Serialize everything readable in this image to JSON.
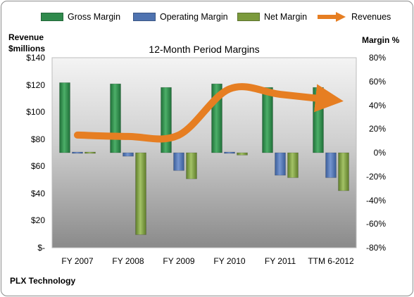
{
  "chart_data": {
    "type": "bar",
    "title": "12-Month Period Margins",
    "categories": [
      "FY 2007",
      "FY 2008",
      "FY 2009",
      "FY 2010",
      "FY 2011",
      "TTM 6-2012"
    ],
    "series": [
      {
        "name": "Gross Margin",
        "axis": "right",
        "color": "#2f8a4c",
        "values": [
          59,
          58,
          55,
          58,
          55,
          55
        ]
      },
      {
        "name": "Operating Margin",
        "axis": "right",
        "color": "#4f73b0",
        "values": [
          -1,
          -3,
          -15,
          0,
          -19,
          -21
        ]
      },
      {
        "name": "Net Margin",
        "axis": "right",
        "color": "#7b9a3c",
        "values": [
          1,
          -69,
          -22,
          -2,
          -21,
          -32
        ]
      },
      {
        "name": "Revenues",
        "axis": "left",
        "type": "line",
        "color": "#e67e22",
        "values": [
          83,
          82,
          83,
          117,
          113,
          109
        ]
      }
    ],
    "y_left": {
      "label_line1": "Revenue",
      "label_line2": "$millions",
      "lim": [
        0,
        140
      ],
      "ticks": [
        "$-",
        "$20",
        "$40",
        "$60",
        "$80",
        "$100",
        "$120",
        "$140"
      ]
    },
    "y_right": {
      "label": "Margin %",
      "lim": [
        -80,
        80
      ],
      "ticks": [
        "-80%",
        "-60%",
        "-40%",
        "-20%",
        "0%",
        "20%",
        "40%",
        "60%",
        "80%"
      ]
    },
    "legend_position": "top",
    "grid": false
  },
  "footer": {
    "company": "PLX Technology"
  }
}
